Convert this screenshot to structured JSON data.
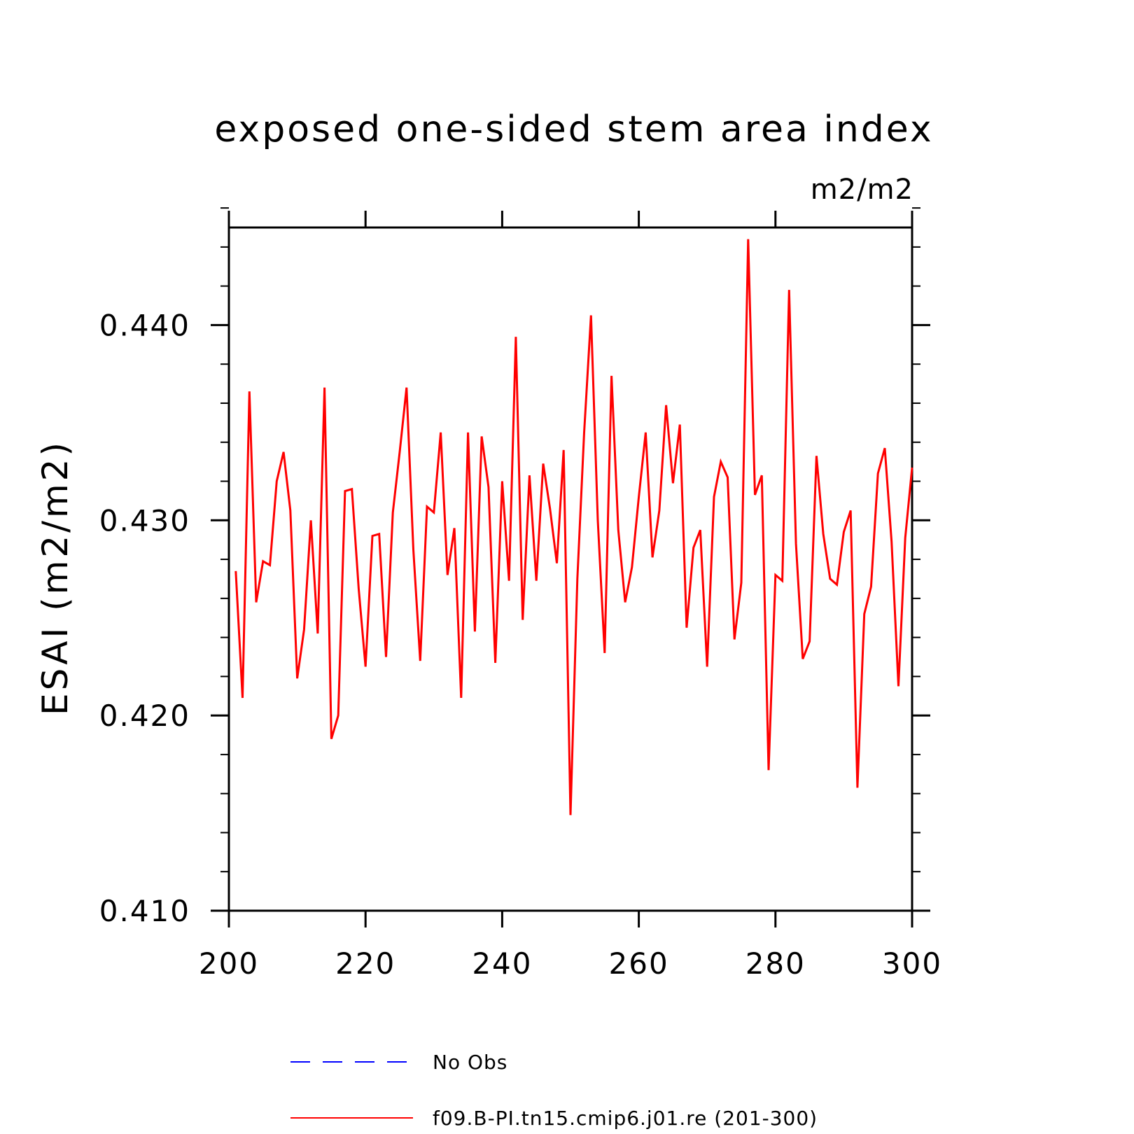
{
  "chart_data": {
    "type": "line",
    "title": "exposed one-sided stem area index",
    "units": "m2/m2",
    "xlabel": "",
    "ylabel": "ESAI  (m2/m2)",
    "xlim": [
      201,
      300
    ],
    "ylim": [
      0.41,
      0.445
    ],
    "x_ticks": [
      200,
      220,
      240,
      260,
      280,
      300
    ],
    "x_tick_labels": [
      "200",
      "220",
      "240",
      "260",
      "280",
      "300"
    ],
    "y_ticks": [
      0.41,
      0.42,
      0.43,
      0.44
    ],
    "y_tick_labels": [
      "0.410",
      "0.420",
      "0.430",
      "0.440"
    ],
    "grid": false,
    "legend_position": "bottom",
    "legend": [
      {
        "label": "No Obs",
        "color": "#0000ff",
        "style": "dashed"
      },
      {
        "label": "f09.B-PI.tn15.cmip6.j01.re (201-300)",
        "color": "#ff0000",
        "style": "solid"
      }
    ],
    "series": [
      {
        "name": "f09.B-PI.tn15.cmip6.j01.re (201-300)",
        "color": "#ff0000",
        "x": [
          201,
          202,
          203,
          204,
          205,
          206,
          207,
          208,
          209,
          210,
          211,
          212,
          213,
          214,
          215,
          216,
          217,
          218,
          219,
          220,
          221,
          222,
          223,
          224,
          225,
          226,
          227,
          228,
          229,
          230,
          231,
          232,
          233,
          234,
          235,
          236,
          237,
          238,
          239,
          240,
          241,
          242,
          243,
          244,
          245,
          246,
          247,
          248,
          249,
          250,
          251,
          252,
          253,
          254,
          255,
          256,
          257,
          258,
          259,
          260,
          261,
          262,
          263,
          264,
          265,
          266,
          267,
          268,
          269,
          270,
          271,
          272,
          273,
          274,
          275,
          276,
          277,
          278,
          279,
          280,
          281,
          282,
          283,
          284,
          285,
          286,
          287,
          288,
          289,
          290,
          291,
          292,
          293,
          294,
          295,
          296,
          297,
          298,
          299,
          300
        ],
        "values": [
          0.4274,
          0.4209,
          0.4366,
          0.4258,
          0.4279,
          0.4277,
          0.432,
          0.4335,
          0.4305,
          0.4219,
          0.4244,
          0.43,
          0.4242,
          0.4368,
          0.4188,
          0.42,
          0.4315,
          0.4316,
          0.4265,
          0.4225,
          0.4292,
          0.4293,
          0.423,
          0.4304,
          0.4335,
          0.4368,
          0.4285,
          0.4228,
          0.4307,
          0.4304,
          0.4345,
          0.4272,
          0.4296,
          0.4209,
          0.4345,
          0.4243,
          0.4343,
          0.4317,
          0.4227,
          0.432,
          0.4269,
          0.4394,
          0.4249,
          0.4323,
          0.4269,
          0.4329,
          0.4306,
          0.4278,
          0.4336,
          0.4149,
          0.427,
          0.4345,
          0.4405,
          0.43,
          0.4232,
          0.4374,
          0.4295,
          0.4258,
          0.4276,
          0.4312,
          0.4345,
          0.4281,
          0.4305,
          0.4359,
          0.4319,
          0.4349,
          0.4245,
          0.4286,
          0.4295,
          0.4225,
          0.4312,
          0.433,
          0.4322,
          0.4239,
          0.4268,
          0.4444,
          0.4313,
          0.4323,
          0.4172,
          0.4272,
          0.4269,
          0.4418,
          0.4288,
          0.4229,
          0.4238,
          0.4333,
          0.4293,
          0.427,
          0.4267,
          0.4294,
          0.4305,
          0.4163,
          0.4252,
          0.4266,
          0.4324,
          0.4337,
          0.4289,
          0.4215,
          0.4291,
          0.4327
        ]
      }
    ]
  }
}
